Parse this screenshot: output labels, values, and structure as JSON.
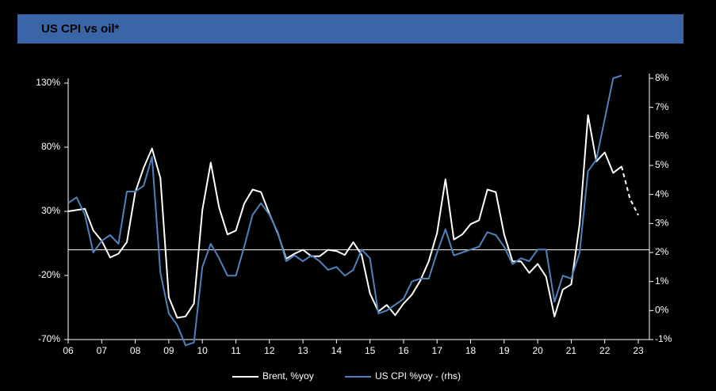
{
  "chart_data": {
    "type": "line",
    "title": "US CPI vs oil*",
    "x": [
      2006,
      2006.25,
      2006.5,
      2006.75,
      2007,
      2007.25,
      2007.5,
      2007.75,
      2008,
      2008.25,
      2008.5,
      2008.75,
      2009,
      2009.25,
      2009.5,
      2009.75,
      2010,
      2010.25,
      2010.5,
      2010.75,
      2011,
      2011.25,
      2011.5,
      2011.75,
      2012,
      2012.25,
      2012.5,
      2012.75,
      2013,
      2013.25,
      2013.5,
      2013.75,
      2014,
      2014.25,
      2014.5,
      2014.75,
      2015,
      2015.25,
      2015.5,
      2015.75,
      2016,
      2016.25,
      2016.5,
      2016.75,
      2017,
      2017.25,
      2017.5,
      2017.75,
      2018,
      2018.25,
      2018.5,
      2018.75,
      2019,
      2019.25,
      2019.5,
      2019.75,
      2020,
      2020.25,
      2020.5,
      2020.75,
      2021,
      2021.25,
      2021.5,
      2021.75,
      2022,
      2022.25,
      2022.5,
      2022.75,
      2023
    ],
    "xlim": [
      2006,
      2023
    ],
    "xticks": [
      {
        "value": 2006,
        "label": "06"
      },
      {
        "value": 2007,
        "label": "07"
      },
      {
        "value": 2008,
        "label": "08"
      },
      {
        "value": 2009,
        "label": "09"
      },
      {
        "value": 2010,
        "label": "10"
      },
      {
        "value": 2011,
        "label": "11"
      },
      {
        "value": 2012,
        "label": "12"
      },
      {
        "value": 2013,
        "label": "13"
      },
      {
        "value": 2014,
        "label": "14"
      },
      {
        "value": 2015,
        "label": "15"
      },
      {
        "value": 2016,
        "label": "16"
      },
      {
        "value": 2017,
        "label": "17"
      },
      {
        "value": 2018,
        "label": "18"
      },
      {
        "value": 2019,
        "label": "19"
      },
      {
        "value": 2020,
        "label": "20"
      },
      {
        "value": 2021,
        "label": "21"
      },
      {
        "value": 2022,
        "label": "22"
      },
      {
        "value": 2023,
        "label": "23"
      }
    ],
    "ylim": [
      -70,
      130
    ],
    "yticks": [
      {
        "value": -70,
        "label": "-70%"
      },
      {
        "value": -20,
        "label": "-20%"
      },
      {
        "value": 30,
        "label": "30%"
      },
      {
        "value": 80,
        "label": "80%"
      },
      {
        "value": 130,
        "label": "130%"
      }
    ],
    "y2lim": [
      -1,
      8
    ],
    "y2ticks": [
      {
        "value": -1,
        "label": "-1%"
      },
      {
        "value": 0,
        "label": "0%"
      },
      {
        "value": 1,
        "label": "1%"
      },
      {
        "value": 2,
        "label": "2%"
      },
      {
        "value": 3,
        "label": "3%"
      },
      {
        "value": 4,
        "label": "4%"
      },
      {
        "value": 5,
        "label": "5%"
      },
      {
        "value": 6,
        "label": "6%"
      },
      {
        "value": 7,
        "label": "7%"
      },
      {
        "value": 8,
        "label": "8%"
      }
    ],
    "series": [
      {
        "name": "Brent, %yoy",
        "color": "#ffffff",
        "values": [
          30,
          31,
          32,
          15,
          7,
          -6,
          -3,
          6,
          45,
          64,
          79,
          56,
          -37,
          -53,
          -52,
          -42,
          31,
          68,
          33,
          12,
          15,
          36,
          47,
          45,
          28,
          13,
          -7,
          -3,
          0,
          -5,
          -5,
          0,
          -1,
          -4,
          6,
          -4,
          -34,
          -48,
          -43,
          -51,
          -42,
          -35,
          -24,
          -9,
          13,
          55,
          8,
          12,
          20,
          23,
          47,
          45,
          12,
          -9,
          -9,
          -18,
          -11,
          -21,
          -52,
          -31,
          -27,
          20,
          105,
          69,
          76,
          60,
          65,
          null,
          null
        ],
        "forecast": [
          null,
          null,
          null,
          null,
          null,
          null,
          null,
          null,
          null,
          null,
          null,
          null,
          null,
          null,
          null,
          null,
          null,
          null,
          null,
          null,
          null,
          null,
          null,
          null,
          null,
          null,
          null,
          null,
          null,
          null,
          null,
          null,
          null,
          null,
          null,
          null,
          null,
          null,
          null,
          null,
          null,
          null,
          null,
          null,
          null,
          null,
          null,
          null,
          null,
          null,
          null,
          null,
          null,
          null,
          null,
          null,
          null,
          null,
          null,
          null,
          null,
          null,
          null,
          null,
          null,
          null,
          65,
          40,
          27
        ]
      },
      {
        "name": "US CPI %yoy - (rhs)",
        "color": "#4f81bd",
        "axis": "y2",
        "values": [
          3.7,
          3.9,
          3.3,
          2.0,
          2.4,
          2.6,
          2.3,
          4.1,
          4.1,
          4.3,
          5.3,
          1.3,
          -0.1,
          -0.5,
          -1.2,
          -1.1,
          1.5,
          2.3,
          1.8,
          1.2,
          1.2,
          2.2,
          3.3,
          3.7,
          3.3,
          2.7,
          1.7,
          1.9,
          1.7,
          1.9,
          1.7,
          1.4,
          1.5,
          1.2,
          1.4,
          2.1,
          1.8,
          -0.1,
          0,
          0.2,
          0.4,
          1.0,
          1.1,
          1.1,
          2.0,
          2.8,
          1.9,
          2.0,
          2.1,
          2.2,
          2.7,
          2.6,
          2.2,
          1.6,
          1.8,
          1.7,
          2.1,
          2.1,
          0.3,
          1.2,
          1.1,
          2.0,
          4.8,
          5.2,
          6.6,
          8.0,
          8.1,
          null,
          null
        ]
      }
    ]
  }
}
